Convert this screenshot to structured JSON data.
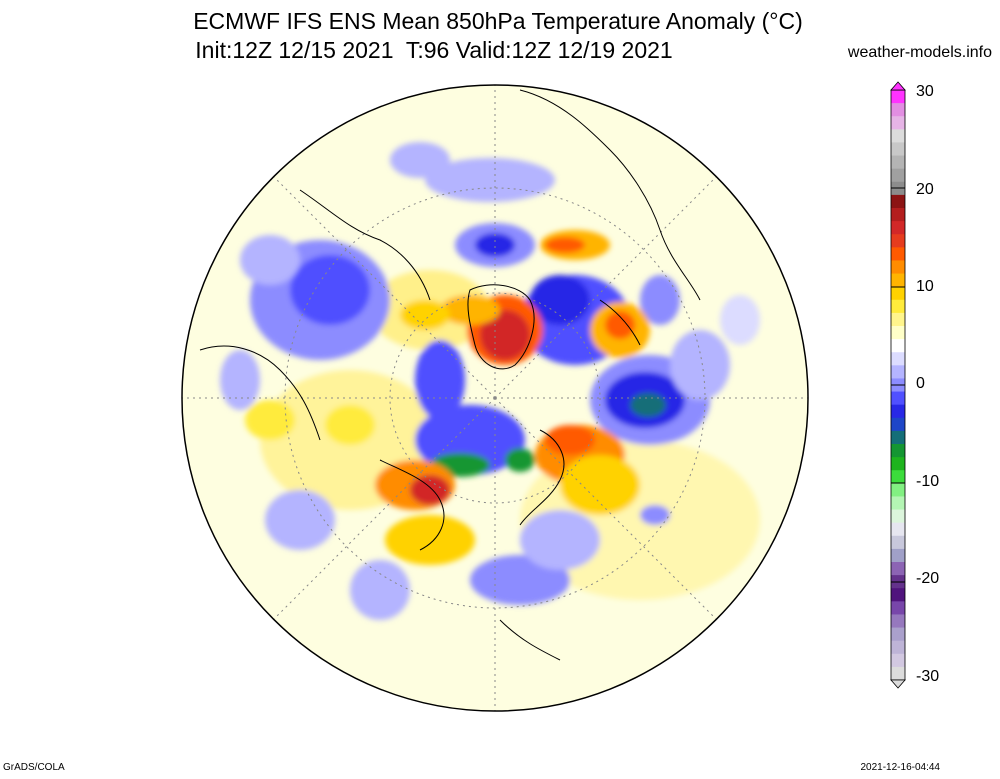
{
  "header": {
    "title_line1": "ECMWF IFS ENS Mean 850hPa Temperature Anomaly (°C)",
    "title_line2": "Init:12Z 12/15 2021  T:96 Valid:12Z 12/19 2021",
    "site": "weather-models.info"
  },
  "colorbar": {
    "labels": [
      "30",
      "20",
      "10",
      "0",
      "-10",
      "-20",
      "-30"
    ],
    "min": -30,
    "max": 30,
    "colors_top_to_bottom": [
      "#ff33ff",
      "#e28ee2",
      "#e6b4e6",
      "#dcdcdc",
      "#c8c8c8",
      "#b4b4b4",
      "#a0a0a0",
      "#8c8c8c",
      "#8c1414",
      "#b41e1e",
      "#d22828",
      "#e63c1e",
      "#ff5a00",
      "#ff8c00",
      "#ffb400",
      "#ffd200",
      "#ffeb3c",
      "#fff58c",
      "#ffffc8",
      "#ffffff",
      "#dcdcff",
      "#b4b4ff",
      "#8c8cff",
      "#5050ff",
      "#2828e6",
      "#1e46c8",
      "#146e78",
      "#149632",
      "#1eb41e",
      "#3cdc3c",
      "#82f082",
      "#b4f5b4",
      "#dcf5dc",
      "#e6e6f0",
      "#c8c8dc",
      "#a0a0c8",
      "#8c64b4",
      "#64328c",
      "#50147d",
      "#7846aa",
      "#9678be",
      "#aaa0cc",
      "#beb4d7",
      "#d2c8e1",
      "#dcdcdc"
    ]
  },
  "map": {
    "projection": "north-polar-stereographic",
    "field": "850hPa temperature anomaly",
    "units": "°C"
  },
  "footer": {
    "left": "GrADS/COLA",
    "right": "2021-12-16-04:44"
  }
}
